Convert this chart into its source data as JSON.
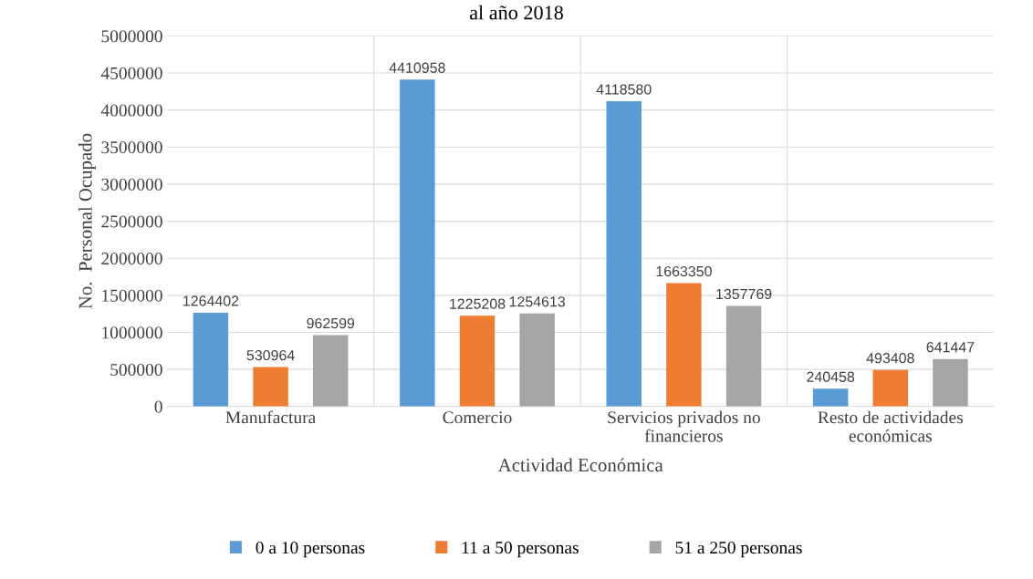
{
  "chart_data": {
    "type": "bar",
    "title": "al año 2018",
    "xlabel": "Actividad Económica",
    "ylabel": "No.  Personal Ocupado",
    "categories": [
      "Manufactura",
      "Comercio",
      "Servicios privados no\nfinancieros",
      "Resto de actividades\neconómicas"
    ],
    "series": [
      {
        "name": "0 a 10 personas",
        "color": "#5b9bd5",
        "values": [
          1264402,
          4410958,
          4118580,
          240458
        ]
      },
      {
        "name": "11 a 50 personas",
        "color": "#ed7d31",
        "values": [
          530964,
          1225208,
          1663350,
          493408
        ]
      },
      {
        "name": "51 a 250 personas",
        "color": "#a5a5a5",
        "values": [
          962599,
          1254613,
          1357769,
          641447
        ]
      }
    ],
    "ylim": [
      0,
      5000000
    ],
    "yticks": [
      0,
      500000,
      1000000,
      1500000,
      2000000,
      2500000,
      3000000,
      3500000,
      4000000,
      4500000,
      5000000
    ],
    "grid": "y",
    "legend": "bottom",
    "data_labels": true
  }
}
